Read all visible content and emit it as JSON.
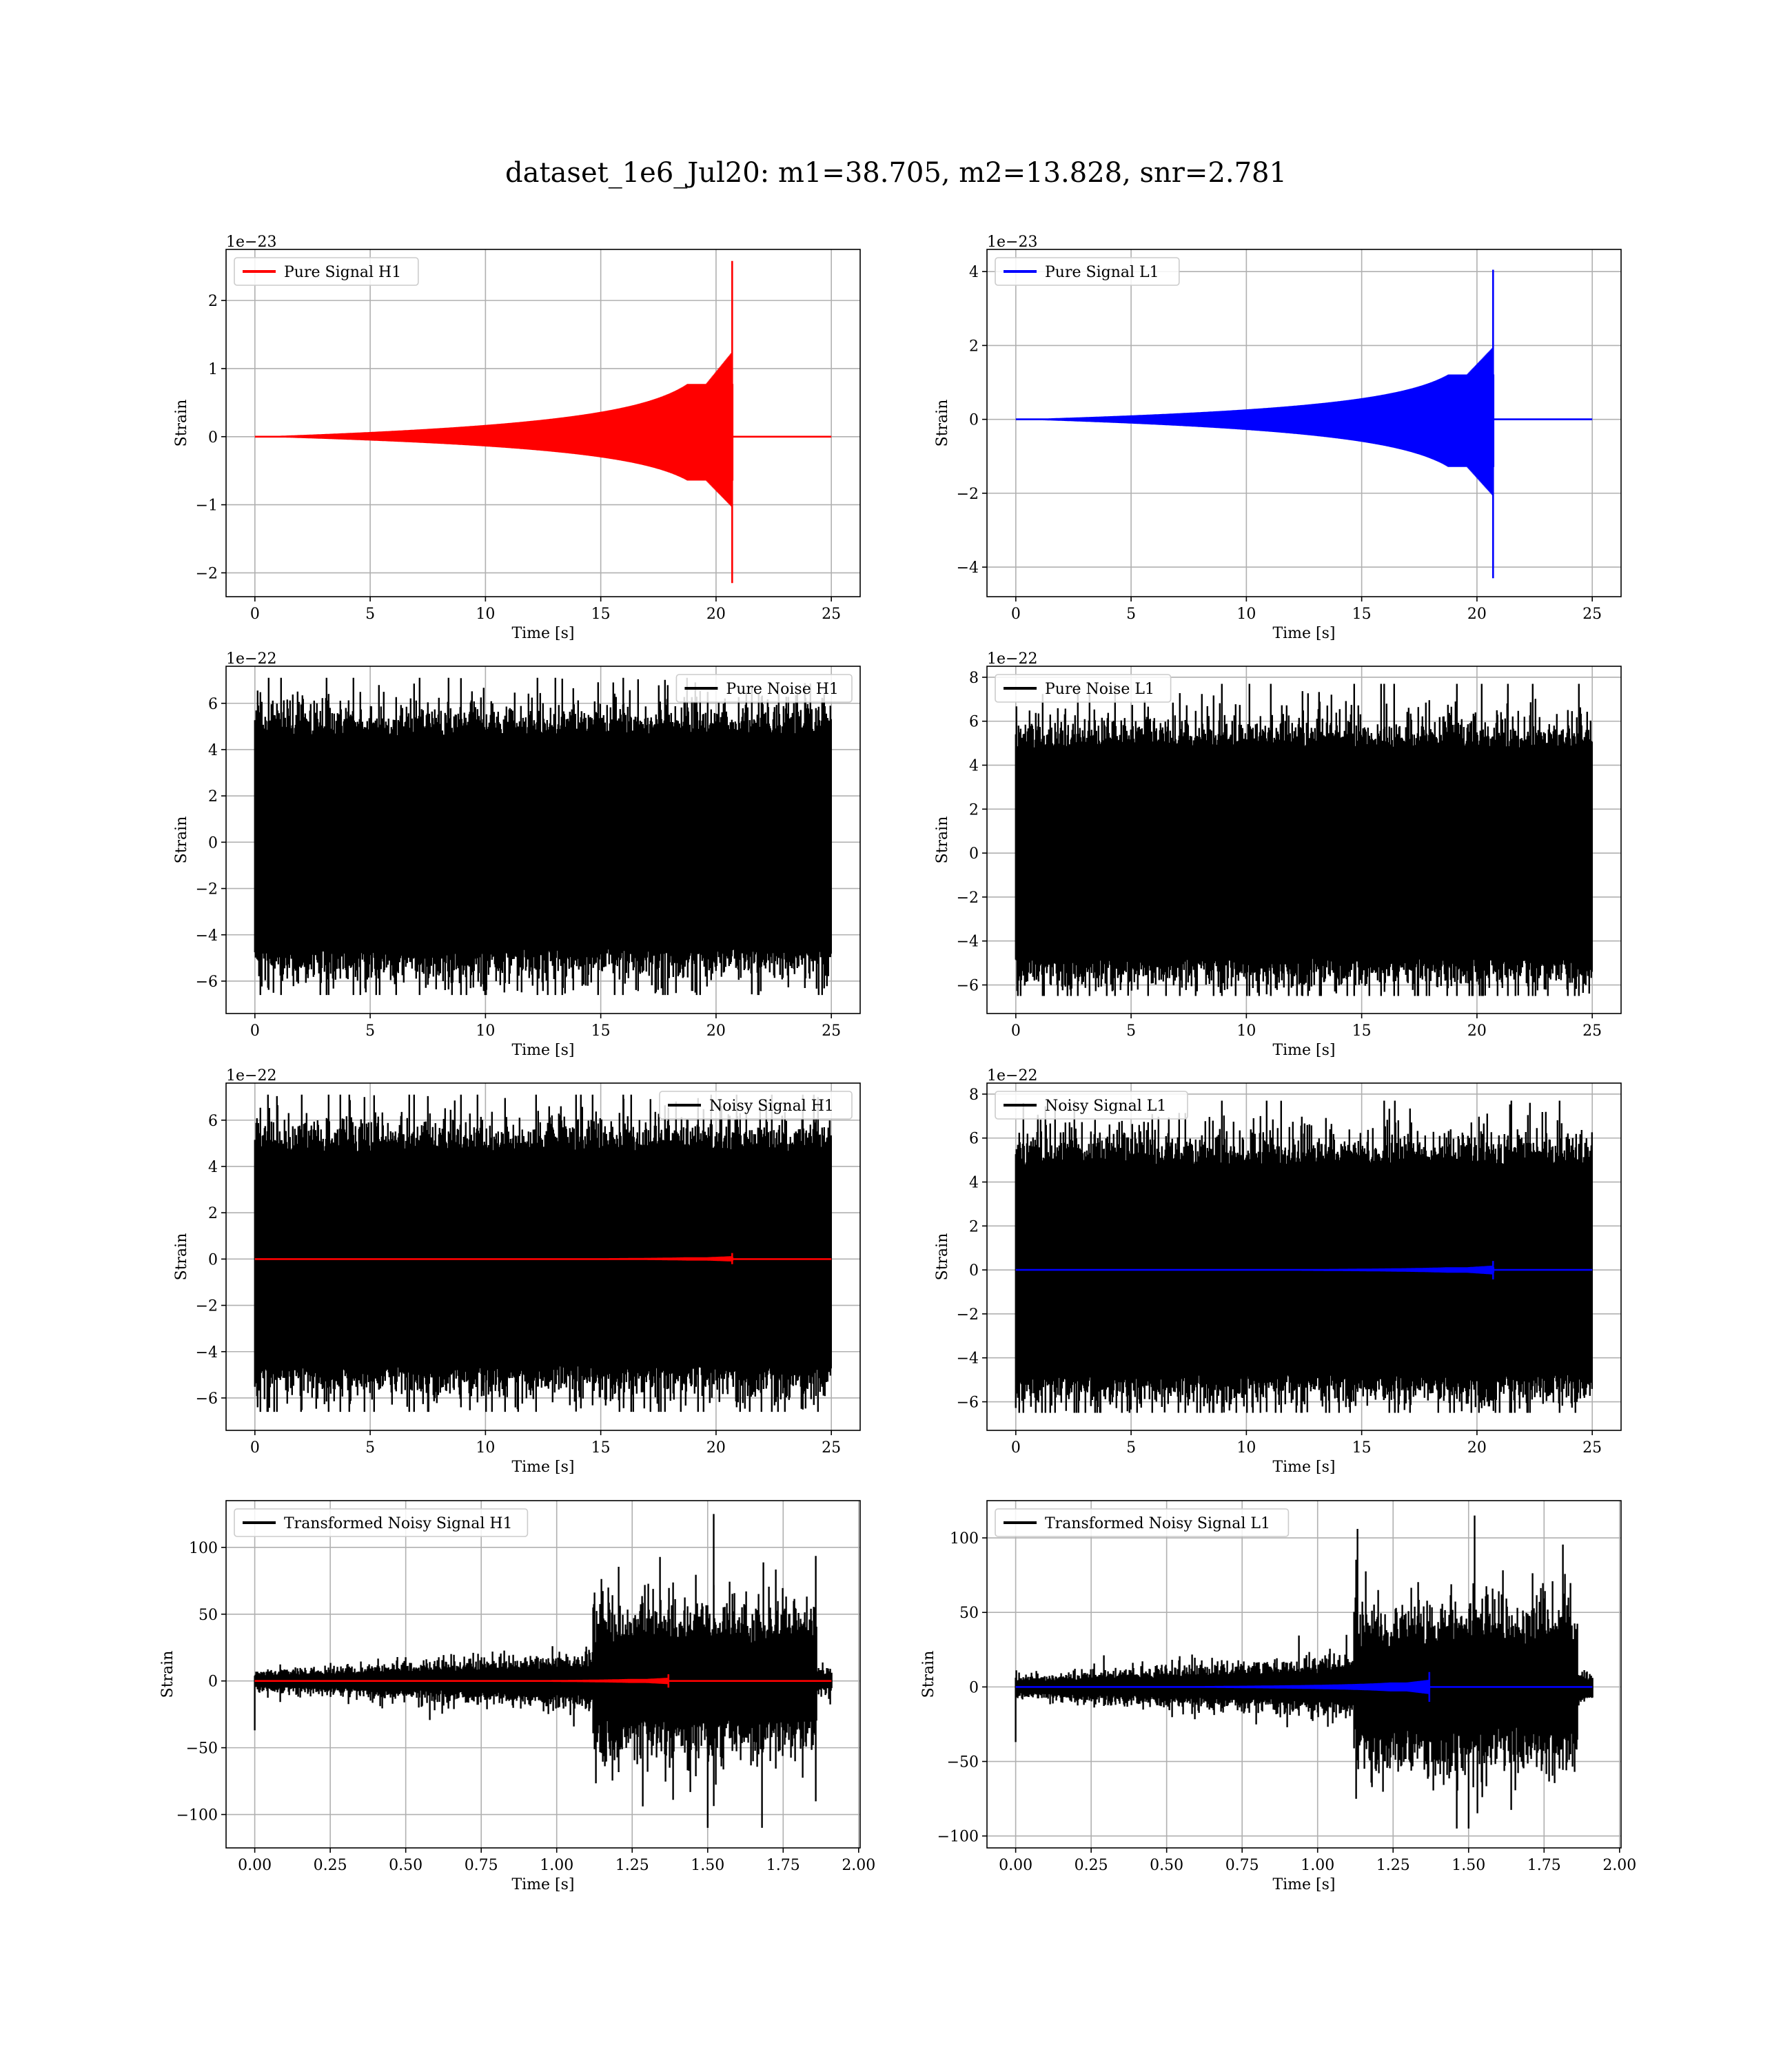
{
  "figure": {
    "title": "dataset_1e6_Jul20: m1=38.705, m2=13.828, snr=2.781"
  },
  "chart_data": [
    {
      "id": "pure-signal-h1",
      "type": "line",
      "xlabel": "Time [s]",
      "ylabel": "Strain",
      "offset": "1e−23",
      "xlim": [
        -1.25,
        26.25
      ],
      "ylim": [
        -2.35,
        2.75
      ],
      "xticks": [
        0,
        5,
        10,
        15,
        20,
        25
      ],
      "xtick_labels": [
        "0",
        "5",
        "10",
        "15",
        "20",
        "25"
      ],
      "yticks": [
        -2,
        -1,
        0,
        1,
        2
      ],
      "ytick_labels": [
        "−2",
        "−1",
        "0",
        "1",
        "2"
      ],
      "grid": true,
      "legend_loc": "upper-left",
      "series": [
        {
          "name": "Pure Signal H1",
          "color": "#ff0000",
          "kind": "chirp",
          "x0": 0,
          "x1": 25,
          "tc": 20.7,
          "peak": 2.58,
          "trough": -2.15
        }
      ]
    },
    {
      "id": "pure-signal-l1",
      "type": "line",
      "xlabel": "Time [s]",
      "ylabel": "Strain",
      "offset": "1e−23",
      "xlim": [
        -1.25,
        26.25
      ],
      "ylim": [
        -4.8,
        4.6
      ],
      "xticks": [
        0,
        5,
        10,
        15,
        20,
        25
      ],
      "xtick_labels": [
        "0",
        "5",
        "10",
        "15",
        "20",
        "25"
      ],
      "yticks": [
        -4,
        -2,
        0,
        2,
        4
      ],
      "ytick_labels": [
        "−4",
        "−2",
        "0",
        "2",
        "4"
      ],
      "grid": true,
      "legend_loc": "upper-left",
      "series": [
        {
          "name": "Pure Signal L1",
          "color": "#0000ff",
          "kind": "chirp",
          "x0": 0,
          "x1": 25,
          "tc": 20.7,
          "peak": 4.05,
          "trough": -4.3
        }
      ]
    },
    {
      "id": "pure-noise-h1",
      "type": "line",
      "xlabel": "Time [s]",
      "ylabel": "Strain",
      "offset": "1e−22",
      "xlim": [
        -1.25,
        26.25
      ],
      "ylim": [
        -7.4,
        7.6
      ],
      "xticks": [
        0,
        5,
        10,
        15,
        20,
        25
      ],
      "xtick_labels": [
        "0",
        "5",
        "10",
        "15",
        "20",
        "25"
      ],
      "yticks": [
        -6,
        -4,
        -2,
        0,
        2,
        4,
        6
      ],
      "ytick_labels": [
        "−6",
        "−4",
        "−2",
        "0",
        "2",
        "4",
        "6"
      ],
      "grid": true,
      "legend_loc": "upper-right",
      "series": [
        {
          "name": "Pure Noise H1",
          "color": "#000000",
          "kind": "noise",
          "x0": 0,
          "x1": 25,
          "max": 7.1,
          "min": -6.6
        }
      ]
    },
    {
      "id": "pure-noise-l1",
      "type": "line",
      "xlabel": "Time [s]",
      "ylabel": "Strain",
      "offset": "1e−22",
      "xlim": [
        -1.25,
        26.25
      ],
      "ylim": [
        -7.3,
        8.5
      ],
      "xticks": [
        0,
        5,
        10,
        15,
        20,
        25
      ],
      "xtick_labels": [
        "0",
        "5",
        "10",
        "15",
        "20",
        "25"
      ],
      "yticks": [
        -6,
        -4,
        -2,
        0,
        2,
        4,
        6,
        8
      ],
      "ytick_labels": [
        "−6",
        "−4",
        "−2",
        "0",
        "2",
        "4",
        "6",
        "8"
      ],
      "grid": true,
      "legend_loc": "upper-left",
      "series": [
        {
          "name": "Pure Noise L1",
          "color": "#000000",
          "kind": "noise",
          "x0": 0,
          "x1": 25,
          "max": 7.7,
          "min": -6.5
        }
      ]
    },
    {
      "id": "noisy-signal-h1",
      "type": "line",
      "xlabel": "Time [s]",
      "ylabel": "Strain",
      "offset": "1e−22",
      "xlim": [
        -1.25,
        26.25
      ],
      "ylim": [
        -7.4,
        7.6
      ],
      "xticks": [
        0,
        5,
        10,
        15,
        20,
        25
      ],
      "xtick_labels": [
        "0",
        "5",
        "10",
        "15",
        "20",
        "25"
      ],
      "yticks": [
        -6,
        -4,
        -2,
        0,
        2,
        4,
        6
      ],
      "ytick_labels": [
        "−6",
        "−4",
        "−2",
        "0",
        "2",
        "4",
        "6"
      ],
      "grid": true,
      "legend_loc": "upper-right",
      "series": [
        {
          "name": "Noisy Signal H1",
          "color": "#000000",
          "kind": "noise",
          "x0": 0,
          "x1": 25,
          "max": 7.1,
          "min": -6.6
        },
        {
          "name": "",
          "color": "#ff0000",
          "kind": "chirp",
          "x0": 0,
          "x1": 25,
          "tc": 20.7,
          "peak": 0.26,
          "trough": -0.22
        }
      ]
    },
    {
      "id": "noisy-signal-l1",
      "type": "line",
      "xlabel": "Time [s]",
      "ylabel": "Strain",
      "offset": "1e−22",
      "xlim": [
        -1.25,
        26.25
      ],
      "ylim": [
        -7.3,
        8.5
      ],
      "xticks": [
        0,
        5,
        10,
        15,
        20,
        25
      ],
      "xtick_labels": [
        "0",
        "5",
        "10",
        "15",
        "20",
        "25"
      ],
      "yticks": [
        -6,
        -4,
        -2,
        0,
        2,
        4,
        6,
        8
      ],
      "ytick_labels": [
        "−6",
        "−4",
        "−2",
        "0",
        "2",
        "4",
        "6",
        "8"
      ],
      "grid": true,
      "legend_loc": "upper-left",
      "series": [
        {
          "name": "Noisy Signal L1",
          "color": "#000000",
          "kind": "noise",
          "x0": 0,
          "x1": 25,
          "max": 7.7,
          "min": -6.5
        },
        {
          "name": "",
          "color": "#0000ff",
          "kind": "chirp",
          "x0": 0,
          "x1": 25,
          "tc": 20.7,
          "peak": 0.41,
          "trough": -0.43
        }
      ]
    },
    {
      "id": "transformed-noisy-signal-h1",
      "type": "line",
      "xlabel": "Time [s]",
      "ylabel": "Strain",
      "offset": "",
      "xlim": [
        -0.095,
        2.005
      ],
      "ylim": [
        -125,
        135
      ],
      "xticks": [
        0.0,
        0.25,
        0.5,
        0.75,
        1.0,
        1.25,
        1.5,
        1.75,
        2.0
      ],
      "xtick_labels": [
        "0.00",
        "0.25",
        "0.50",
        "0.75",
        "1.00",
        "1.25",
        "1.50",
        "1.75",
        "2.00"
      ],
      "yticks": [
        -100,
        -50,
        0,
        50,
        100
      ],
      "ytick_labels": [
        "−100",
        "−50",
        "0",
        "50",
        "100"
      ],
      "grid": true,
      "legend_loc": "upper-left",
      "series": [
        {
          "name": "Transformed Noisy Signal H1",
          "color": "#000000",
          "kind": "whitened",
          "x0": 0,
          "x1": 1.91,
          "max": 125,
          "min": -110
        },
        {
          "name": "",
          "color": "#ff0000",
          "kind": "chirp",
          "x0": 0,
          "x1": 1.91,
          "tc": 1.37,
          "peak": 5,
          "trough": -5
        }
      ]
    },
    {
      "id": "transformed-noisy-signal-l1",
      "type": "line",
      "xlabel": "Time [s]",
      "ylabel": "Strain",
      "offset": "",
      "xlim": [
        -0.095,
        2.005
      ],
      "ylim": [
        -108,
        125
      ],
      "xticks": [
        0.0,
        0.25,
        0.5,
        0.75,
        1.0,
        1.25,
        1.5,
        1.75,
        2.0
      ],
      "xtick_labels": [
        "0.00",
        "0.25",
        "0.50",
        "0.75",
        "1.00",
        "1.25",
        "1.50",
        "1.75",
        "2.00"
      ],
      "yticks": [
        -100,
        -50,
        0,
        50,
        100
      ],
      "ytick_labels": [
        "−100",
        "−50",
        "0",
        "50",
        "100"
      ],
      "grid": true,
      "legend_loc": "upper-left",
      "series": [
        {
          "name": "Transformed Noisy Signal L1",
          "color": "#000000",
          "kind": "whitened",
          "x0": 0,
          "x1": 1.91,
          "max": 115,
          "min": -95
        },
        {
          "name": "",
          "color": "#0000ff",
          "kind": "chirp",
          "x0": 0,
          "x1": 1.91,
          "tc": 1.37,
          "peak": 10,
          "trough": -10
        }
      ]
    }
  ]
}
